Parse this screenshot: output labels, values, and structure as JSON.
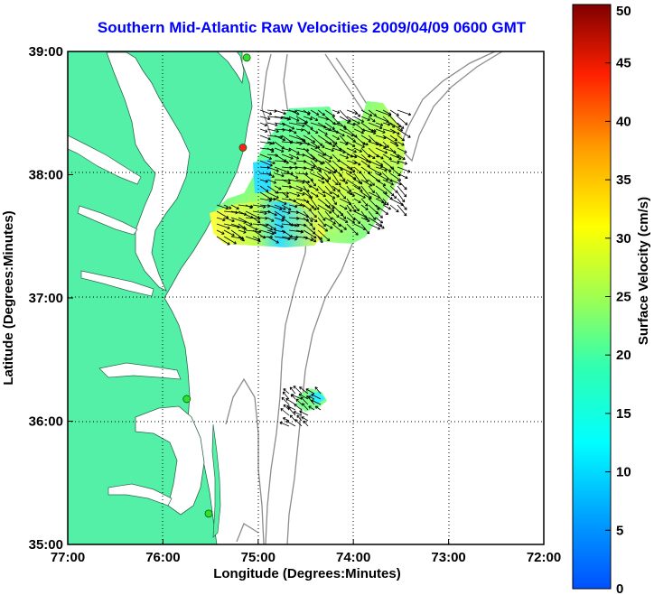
{
  "title": "Southern Mid-Atlantic Raw Velocities 2009/04/09 0600 GMT",
  "map": {
    "x_label": "Longitude (Degrees:Minutes)",
    "y_label": "Latitude (Degrees:Minutes)",
    "x_ticks": [
      "77:00",
      "76:00",
      "75:00",
      "74:00",
      "73:00",
      "72:00"
    ],
    "y_ticks": [
      "39:00",
      "38:00",
      "37:00",
      "36:00",
      "35:00"
    ],
    "lon_range": [
      -77,
      -72
    ],
    "lat_range": [
      35,
      39
    ],
    "grid": "dotted",
    "land_color": "#55f0a8",
    "bathymetry_color": "#8c8c8c"
  },
  "colorbar": {
    "label": "Surface Velocity (cm/s)",
    "ticks": [
      "50",
      "45",
      "40",
      "35",
      "30",
      "25",
      "20",
      "15",
      "10",
      "5",
      "0"
    ],
    "range": [
      0,
      50
    ]
  },
  "stations": [
    {
      "lat": 38.95,
      "lon": -75.12,
      "status": "green"
    },
    {
      "lat": 38.22,
      "lon": -75.16,
      "status": "red"
    },
    {
      "lat": 36.18,
      "lon": -75.75,
      "status": "green"
    },
    {
      "lat": 35.25,
      "lon": -75.52,
      "status": "green"
    }
  ]
}
